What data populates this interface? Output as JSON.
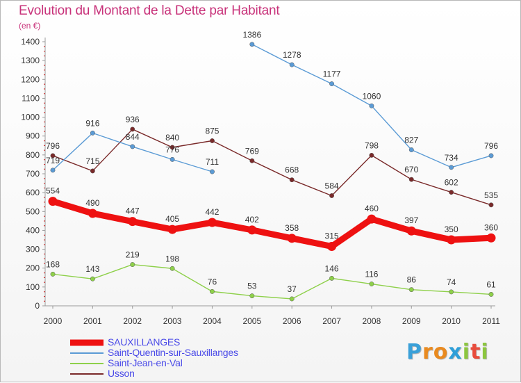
{
  "header": {
    "title": "Evolution du Montant de la Dette par Habitant",
    "subtitle": "(en €)"
  },
  "logo": {
    "text": "Proxiti",
    "letter_colors": [
      "#3aa0d8",
      "#e98a1f",
      "#e98a1f",
      "#2f9fd8",
      "#8cc63f",
      "#e84c3d",
      "#8cc63f"
    ]
  },
  "chart_data": {
    "type": "line",
    "x": [
      "2000",
      "2001",
      "2002",
      "2003",
      "2004",
      "2005",
      "2006",
      "2007",
      "2008",
      "2009",
      "2010",
      "2011"
    ],
    "ylim": [
      0,
      1400
    ],
    "yticks": [
      "0",
      "100",
      "200",
      "300",
      "400",
      "500",
      "600",
      "700",
      "800",
      "900",
      "1000",
      "1100",
      "1200",
      "1300",
      "1400"
    ],
    "grid": false,
    "legend_position": "bottom-left",
    "series": [
      {
        "name": "Usson",
        "color": "#7a2a2a",
        "thick": false,
        "values": [
          796,
          715,
          936,
          840,
          875,
          769,
          668,
          584,
          798,
          670,
          602,
          535
        ],
        "labels": [
          "796",
          "715",
          "936",
          "840",
          "875",
          "769",
          "668",
          "584",
          "798",
          "670",
          "602",
          "535"
        ]
      },
      {
        "name": "Saint-Jean-en-Val",
        "color": "#8ed04a",
        "thick": false,
        "values": [
          168,
          143,
          219,
          198,
          76,
          53,
          37,
          146,
          116,
          86,
          74,
          61
        ],
        "labels": [
          "168",
          "143",
          "219",
          "198",
          "76",
          "53",
          "37",
          "146",
          "116",
          "86",
          "74",
          "61"
        ]
      },
      {
        "name": "Saint-Quentin-sur-Sauxillanges",
        "color": "#5b9bd5",
        "thick": false,
        "values": [
          719,
          916,
          844,
          776,
          711,
          null,
          null,
          null,
          null,
          null,
          null,
          null
        ],
        "labels": [
          "719",
          "916",
          "844",
          "776",
          "711",
          "",
          "",
          "",
          "",
          "",
          "",
          ""
        ]
      },
      {
        "name": "Saint-Quentin-sur-Sauxillanges",
        "color": "#5b9bd5",
        "thick": false,
        "values": [
          null,
          null,
          null,
          null,
          null,
          1386,
          1278,
          1177,
          1060,
          827,
          734,
          796
        ],
        "labels": [
          "",
          "",
          "",
          "",
          "",
          "1386",
          "1278",
          "1177",
          "1060",
          "827",
          "734",
          "796"
        ]
      },
      {
        "name": "SAUXILLANGES",
        "color": "#ee1111",
        "thick": true,
        "values": [
          554,
          490,
          447,
          405,
          442,
          402,
          358,
          315,
          460,
          397,
          350,
          360
        ],
        "labels": [
          "554",
          "490",
          "447",
          "405",
          "442",
          "402",
          "358",
          "315",
          "460",
          "397",
          "350",
          "360"
        ]
      }
    ],
    "legend": [
      {
        "name": "SAUXILLANGES",
        "color": "#ee1111",
        "thickness": 9
      },
      {
        "name": "Saint-Quentin-sur-Sauxillanges",
        "color": "#5b9bd5",
        "thickness": 2
      },
      {
        "name": "Saint-Jean-en-Val",
        "color": "#8ed04a",
        "thickness": 2
      },
      {
        "name": "Usson",
        "color": "#7a2a2a",
        "thickness": 2
      }
    ]
  }
}
